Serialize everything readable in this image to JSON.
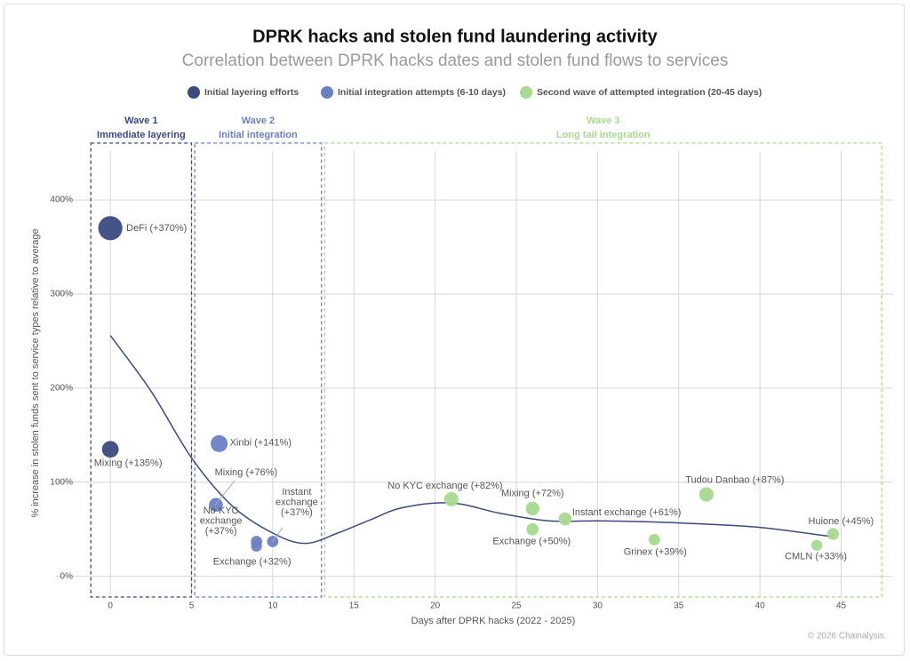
{
  "chart_data": {
    "type": "bubble",
    "title": "DPRK hacks and stolen fund laundering activity",
    "subtitle": "Correlation between DPRK hacks dates and stolen fund flows to services",
    "x_label": "Days after DPRK hacks (2022 - 2025)",
    "y_label": "% increase in stolen funds sent to service types relative to average",
    "credit": "© 2026 Chainalysis",
    "xlim": [
      -3.4,
      48.2
    ],
    "ylim": [
      -22,
      452
    ],
    "xticks": [
      0,
      5,
      10,
      15,
      20,
      25,
      30,
      35,
      40,
      45
    ],
    "yticks": [
      {
        "value": 0,
        "label": "0%"
      },
      {
        "value": 100,
        "label": "100%"
      },
      {
        "value": 200,
        "label": "200%"
      },
      {
        "value": 300,
        "label": "300%"
      },
      {
        "value": 400,
        "label": "400%"
      }
    ],
    "grid": true,
    "waves": [
      {
        "title": "Wave 1",
        "subtitle": "Immediate layering",
        "color": "#3b4a7f",
        "xlim": [
          -1.2,
          5.0
        ]
      },
      {
        "title": "Wave 2",
        "subtitle": "Initial integration",
        "color": "#6b7fc4",
        "xlim": [
          5.2,
          13.0
        ]
      },
      {
        "title": "Wave 3",
        "subtitle": "Long tail integration",
        "color": "#a8d98f",
        "xlim": [
          13.2,
          47.5
        ]
      }
    ],
    "series": [
      {
        "name": "Initial layering efforts",
        "color": "#3b4a7f",
        "x": [
          0,
          0
        ],
        "values": [
          370,
          135
        ],
        "labels": [
          [
            "DeFi (+370%)"
          ],
          [
            "Mixing (+135%)"
          ]
        ]
      },
      {
        "name": "Initial integration attempts (6-10 days)",
        "color": "#6b7fc4",
        "x": [
          6.7,
          6.5,
          9,
          9,
          10
        ],
        "values": [
          141,
          76,
          37,
          32,
          37
        ],
        "labels": [
          [
            "Xinbi (+141%)"
          ],
          [
            "Mixing (+76%)"
          ],
          [
            "No KYC",
            "exchange",
            "(+37%)"
          ],
          [
            "Exchange (+32%)"
          ],
          [
            "Instant",
            "exchange",
            "(+37%)"
          ]
        ]
      },
      {
        "name": "Second wave of attempted integration (20-45 days)",
        "color": "#a8d98f",
        "x": [
          21,
          26,
          26,
          28,
          33.5,
          36.7,
          44.5,
          43.5
        ],
        "values": [
          82,
          72,
          50,
          61,
          39,
          87,
          45,
          33
        ],
        "labels": [
          [
            "No KYC exchange (+82%)"
          ],
          [
            "Mixing (+72%)"
          ],
          [
            "Exchange (+50%)"
          ],
          [
            "Instant exchange (+61%)"
          ],
          [
            "Grinex (+39%)"
          ],
          [
            "Tudou Danbao (+87%)"
          ],
          [
            "Huione (+45%)"
          ],
          [
            "CMLN (+33%)"
          ]
        ]
      }
    ],
    "trend": {
      "color": "#3b4a7f",
      "x": [
        0,
        2.5,
        5,
        7.5,
        10,
        12,
        14,
        16,
        18,
        21,
        24,
        27,
        30,
        33,
        36,
        40,
        44.5
      ],
      "values": [
        256,
        197,
        126,
        75,
        46,
        35,
        46,
        60,
        73,
        78,
        67,
        59,
        59,
        58,
        56,
        52,
        42
      ]
    }
  }
}
